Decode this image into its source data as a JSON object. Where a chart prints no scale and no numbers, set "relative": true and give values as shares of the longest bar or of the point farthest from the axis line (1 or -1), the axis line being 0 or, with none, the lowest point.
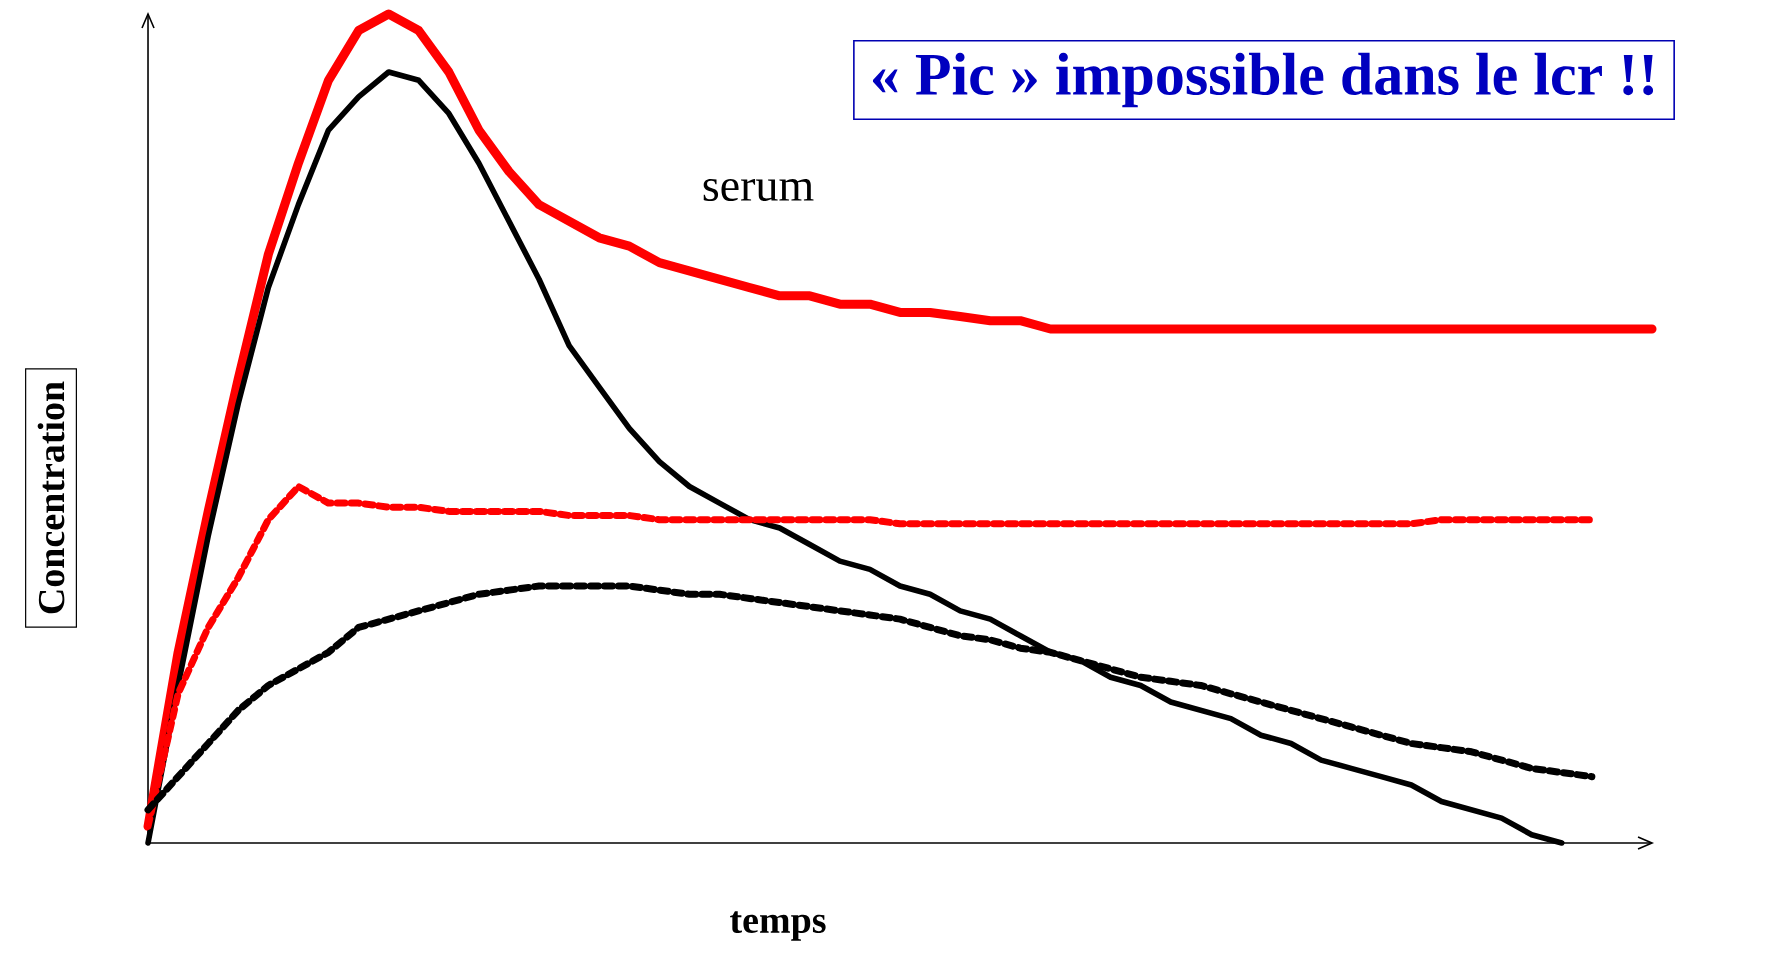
{
  "chart_data": {
    "type": "line",
    "relative": true,
    "title": "« Pic » impossible dans le lcr !!",
    "xlabel": "temps",
    "ylabel": "Concentration",
    "annotations": [
      "serum"
    ],
    "marker": "none",
    "categories": [
      null,
      null,
      null,
      null,
      null,
      null,
      null,
      null,
      null,
      null,
      null,
      null,
      null,
      null,
      null,
      null,
      null,
      null,
      null,
      null,
      null,
      null,
      null,
      null,
      null,
      null,
      null,
      null,
      null,
      null,
      null,
      null,
      null,
      null,
      null,
      null,
      null,
      null,
      null,
      null,
      null,
      null,
      null,
      null,
      null,
      null,
      null,
      null,
      null,
      null,
      null
    ],
    "series": [
      {
        "color": "#ff0000",
        "line_style": "solid",
        "values": [
          0.02,
          0.23,
          0.4,
          0.56,
          0.71,
          0.82,
          0.92,
          0.98,
          1.0,
          0.98,
          0.93,
          0.86,
          0.81,
          0.77,
          0.75,
          0.73,
          0.72,
          0.7,
          0.69,
          0.68,
          0.67,
          0.66,
          0.66,
          0.65,
          0.65,
          0.64,
          0.64,
          0.635,
          0.63,
          0.63,
          0.62,
          0.62,
          0.62,
          0.62,
          0.62,
          0.62,
          0.62,
          0.62,
          0.62,
          0.62,
          0.62,
          0.62,
          0.62,
          0.62,
          0.62,
          0.62,
          0.62,
          0.62,
          0.62,
          0.62,
          0.62
        ]
      },
      {
        "color": "#000000",
        "line_style": "solid",
        "values": [
          0,
          0.19,
          0.37,
          0.53,
          0.67,
          0.77,
          0.86,
          0.9,
          0.93,
          0.92,
          0.88,
          0.82,
          0.75,
          0.68,
          0.6,
          0.55,
          0.5,
          0.46,
          0.43,
          0.41,
          0.39,
          0.38,
          0.36,
          0.34,
          0.33,
          0.31,
          0.3,
          0.28,
          0.27,
          0.25,
          0.23,
          0.22,
          0.2,
          0.19,
          0.17,
          0.16,
          0.15,
          0.13,
          0.12,
          0.1,
          0.09,
          0.08,
          0.07,
          0.05,
          0.04,
          0.03,
          0.01,
          0,
          null,
          null,
          null
        ]
      },
      {
        "color": "#ff0000",
        "line_style": "dotted",
        "values": [
          0.02,
          0.18,
          0.26,
          0.32,
          0.39,
          0.43,
          0.41,
          0.41,
          0.405,
          0.405,
          0.4,
          0.4,
          0.4,
          0.4,
          0.395,
          0.395,
          0.395,
          0.39,
          0.39,
          0.39,
          0.39,
          0.39,
          0.39,
          0.39,
          0.39,
          0.385,
          0.385,
          0.385,
          0.385,
          0.385,
          0.385,
          0.385,
          0.385,
          0.385,
          0.385,
          0.385,
          0.385,
          0.385,
          0.385,
          0.385,
          0.385,
          0.385,
          0.385,
          0.39,
          0.39,
          0.39,
          0.39,
          0.39,
          0.39,
          null,
          null
        ]
      },
      {
        "color": "#000000",
        "line_style": "dotted",
        "values": [
          0.04,
          0.08,
          0.12,
          0.16,
          0.19,
          0.21,
          0.23,
          0.26,
          0.27,
          0.28,
          0.29,
          0.3,
          0.305,
          0.31,
          0.31,
          0.31,
          0.31,
          0.305,
          0.3,
          0.3,
          0.295,
          0.29,
          0.285,
          0.28,
          0.275,
          0.27,
          0.26,
          0.25,
          0.245,
          0.235,
          0.23,
          0.22,
          0.21,
          0.2,
          0.195,
          0.19,
          0.18,
          0.17,
          0.16,
          0.15,
          0.14,
          0.13,
          0.12,
          0.115,
          0.11,
          0.1,
          0.09,
          0.085,
          0.08,
          null,
          null
        ]
      }
    ]
  }
}
